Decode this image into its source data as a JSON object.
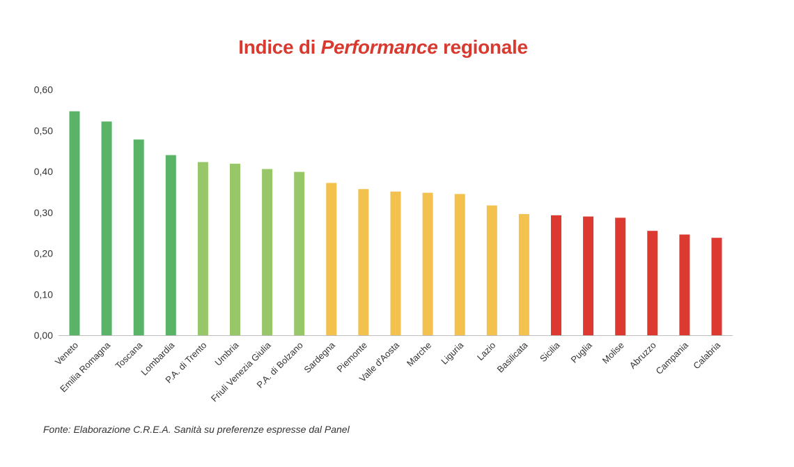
{
  "chart_data": {
    "type": "bar",
    "title": {
      "before": "Indice di ",
      "emphasis": "Performance",
      "after": " regionale"
    },
    "xlabel": "",
    "ylabel": "",
    "ylim": [
      0,
      0.6
    ],
    "yticks": [
      "0,00",
      "0,10",
      "0,20",
      "0,30",
      "0,40",
      "0,50",
      "0,60"
    ],
    "grid": false,
    "categories": [
      "Veneto",
      "Emilia Romagna",
      "Toscana",
      "Lombardia",
      "P.A. di Trento",
      "Umbria",
      "Friuli Venezia Giulia",
      "P.A. di Bolzano",
      "Sardegna",
      "Piemonte",
      "Valle d'Aosta",
      "Marche",
      "Liguria",
      "Lazio",
      "Basilicata",
      "Sicilia",
      "Puglia",
      "Molise",
      "Abruzzo",
      "Campania",
      "Calabria"
    ],
    "values": [
      0.547,
      0.522,
      0.478,
      0.44,
      0.423,
      0.419,
      0.406,
      0.399,
      0.372,
      0.357,
      0.351,
      0.348,
      0.345,
      0.317,
      0.296,
      0.293,
      0.29,
      0.287,
      0.255,
      0.246,
      0.238
    ],
    "bar_colors": [
      "#5ab467",
      "#5ab467",
      "#5ab467",
      "#5ab467",
      "#98c76a",
      "#98c76a",
      "#98c76a",
      "#98c76a",
      "#f2c14e",
      "#f2c14e",
      "#f2c14e",
      "#f2c14e",
      "#f2c14e",
      "#f2c14e",
      "#f2c14e",
      "#dc3a31",
      "#dc3a31",
      "#dc3a31",
      "#dc3a31",
      "#dc3a31",
      "#dc3a31"
    ]
  },
  "source": "Fonte: Elaborazione C.R.E.A. Sanità su preferenze espresse dal Panel"
}
